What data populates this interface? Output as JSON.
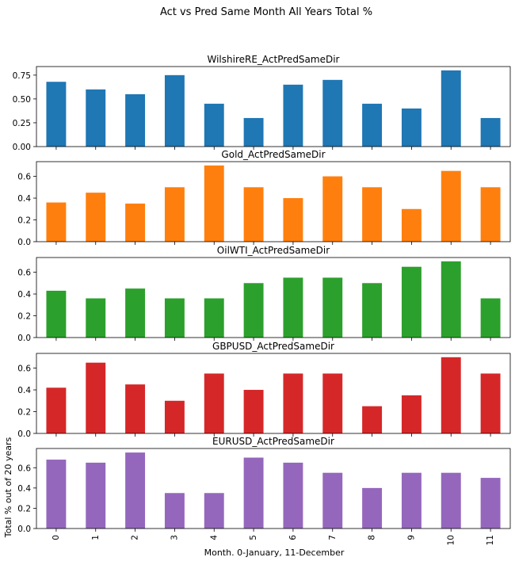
{
  "figure_title": "Act vs Pred Same Month All Years Total %",
  "xlabel": "Month. 0-January, 11-December",
  "ylabel": "Total % out of 20 years",
  "chart_data": [
    {
      "type": "bar",
      "title": "WilshireRE_ActPredSameDir",
      "color": "#1f77b4",
      "categories": [
        "0",
        "1",
        "2",
        "3",
        "4",
        "5",
        "6",
        "7",
        "8",
        "9",
        "10",
        "11"
      ],
      "values": [
        0.68,
        0.6,
        0.55,
        0.75,
        0.45,
        0.3,
        0.65,
        0.7,
        0.45,
        0.4,
        0.8,
        0.3
      ],
      "ylim": [
        0,
        0.84
      ],
      "yticks": [
        0.0,
        0.25,
        0.5,
        0.75
      ],
      "ytick_labels": [
        "0.00",
        "0.25",
        "0.50",
        "0.75"
      ]
    },
    {
      "type": "bar",
      "title": "Gold_ActPredSameDir",
      "color": "#ff7f0e",
      "categories": [
        "0",
        "1",
        "2",
        "3",
        "4",
        "5",
        "6",
        "7",
        "8",
        "9",
        "10",
        "11"
      ],
      "values": [
        0.36,
        0.45,
        0.35,
        0.5,
        0.7,
        0.5,
        0.4,
        0.6,
        0.5,
        0.3,
        0.65,
        0.5
      ],
      "ylim": [
        0,
        0.735
      ],
      "yticks": [
        0.0,
        0.2,
        0.4,
        0.6
      ],
      "ytick_labels": [
        "0.0",
        "0.2",
        "0.4",
        "0.6"
      ]
    },
    {
      "type": "bar",
      "title": "OilWTI_ActPredSameDir",
      "color": "#2ca02c",
      "categories": [
        "0",
        "1",
        "2",
        "3",
        "4",
        "5",
        "6",
        "7",
        "8",
        "9",
        "10",
        "11"
      ],
      "values": [
        0.43,
        0.36,
        0.45,
        0.36,
        0.36,
        0.5,
        0.55,
        0.55,
        0.5,
        0.65,
        0.7,
        0.36
      ],
      "ylim": [
        0,
        0.735
      ],
      "yticks": [
        0.0,
        0.2,
        0.4,
        0.6
      ],
      "ytick_labels": [
        "0.0",
        "0.2",
        "0.4",
        "0.6"
      ]
    },
    {
      "type": "bar",
      "title": "GBPUSD_ActPredSameDir",
      "color": "#d62728",
      "categories": [
        "0",
        "1",
        "2",
        "3",
        "4",
        "5",
        "6",
        "7",
        "8",
        "9",
        "10",
        "11"
      ],
      "values": [
        0.42,
        0.65,
        0.45,
        0.3,
        0.55,
        0.4,
        0.55,
        0.55,
        0.25,
        0.35,
        0.7,
        0.55
      ],
      "ylim": [
        0,
        0.735
      ],
      "yticks": [
        0.0,
        0.2,
        0.4,
        0.6
      ],
      "ytick_labels": [
        "0.0",
        "0.2",
        "0.4",
        "0.6"
      ]
    },
    {
      "type": "bar",
      "title": "EURUSD_ActPredSameDir",
      "color": "#9467bd",
      "categories": [
        "0",
        "1",
        "2",
        "3",
        "4",
        "5",
        "6",
        "7",
        "8",
        "9",
        "10",
        "11"
      ],
      "values": [
        0.68,
        0.65,
        0.75,
        0.35,
        0.35,
        0.7,
        0.65,
        0.55,
        0.4,
        0.55,
        0.55,
        0.5
      ],
      "ylim": [
        0,
        0.79
      ],
      "yticks": [
        0.0,
        0.2,
        0.4,
        0.6
      ],
      "ytick_labels": [
        "0.0",
        "0.2",
        "0.4",
        "0.6"
      ]
    }
  ]
}
